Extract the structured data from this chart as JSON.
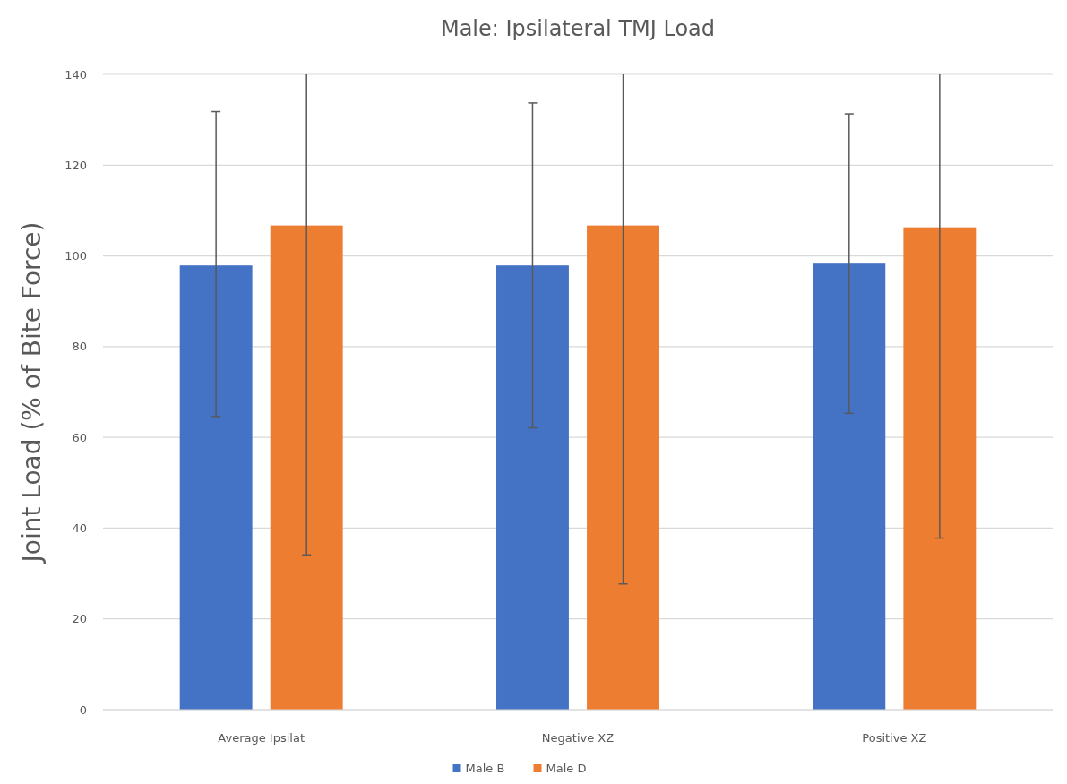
{
  "chart_data": {
    "type": "bar",
    "title": "Male: Ipsilateral TMJ Load",
    "ylabel": "Joint  Load (% of Bite Force)",
    "categories": [
      "Average Ipsilat",
      "Negative XZ",
      "Positive XZ"
    ],
    "series": [
      {
        "name": "Male B",
        "color": "#4472c4",
        "values": [
          97.9,
          97.9,
          98.3
        ],
        "errors": [
          [
            64.6,
            131.8
          ],
          [
            62.1,
            133.7
          ],
          [
            65.3,
            131.3
          ]
        ]
      },
      {
        "name": "Male D",
        "color": "#ed7d31",
        "values": [
          106.7,
          106.7,
          106.3
        ],
        "errors": [
          [
            34.1,
            140
          ],
          [
            27.7,
            140
          ],
          [
            37.8,
            140
          ]
        ]
      }
    ],
    "ylim": [
      0,
      140
    ],
    "yticks": [
      0,
      20,
      40,
      60,
      80,
      100,
      120,
      140
    ],
    "grid": "y",
    "legend": "bottom"
  }
}
